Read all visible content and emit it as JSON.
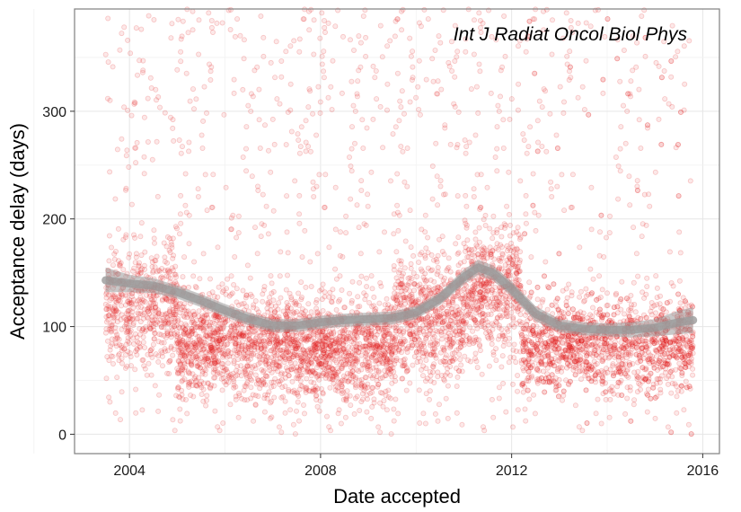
{
  "chart_data": {
    "type": "scatter",
    "title": "",
    "annotation": "Int J Radiat Oncol Biol Phys",
    "xlabel": "Date accepted",
    "ylabel": "Acceptance delay (days)",
    "xlim": [
      2002.85,
      2016.35
    ],
    "ylim": [
      -18,
      395
    ],
    "x_ticks": [
      2004,
      2008,
      2012,
      2016
    ],
    "x_tick_labels": [
      "2004",
      "2008",
      "2012",
      "2016"
    ],
    "y_ticks": [
      0,
      100,
      200,
      300
    ],
    "y_tick_labels": [
      "0",
      "100",
      "200",
      "300"
    ],
    "grid": true,
    "legend": "none",
    "point_color": "#e41a1c",
    "point_alpha": 0.12,
    "smooth_color": "#9a9a9a",
    "smooth": [
      {
        "x": 2003.5,
        "y": 143,
        "lo": 132,
        "hi": 155
      },
      {
        "x": 2004.0,
        "y": 140,
        "lo": 132,
        "hi": 148
      },
      {
        "x": 2004.5,
        "y": 138,
        "lo": 131,
        "hi": 145
      },
      {
        "x": 2005.0,
        "y": 132,
        "lo": 126,
        "hi": 138
      },
      {
        "x": 2005.5,
        "y": 124,
        "lo": 118,
        "hi": 130
      },
      {
        "x": 2006.0,
        "y": 115,
        "lo": 109,
        "hi": 121
      },
      {
        "x": 2006.5,
        "y": 107,
        "lo": 101,
        "hi": 113
      },
      {
        "x": 2007.0,
        "y": 101,
        "lo": 95,
        "hi": 107
      },
      {
        "x": 2007.5,
        "y": 101,
        "lo": 95,
        "hi": 107
      },
      {
        "x": 2008.0,
        "y": 104,
        "lo": 98,
        "hi": 110
      },
      {
        "x": 2008.5,
        "y": 106,
        "lo": 100,
        "hi": 112
      },
      {
        "x": 2009.0,
        "y": 107,
        "lo": 101,
        "hi": 113
      },
      {
        "x": 2009.5,
        "y": 108,
        "lo": 102,
        "hi": 114
      },
      {
        "x": 2010.0,
        "y": 113,
        "lo": 107,
        "hi": 119
      },
      {
        "x": 2010.5,
        "y": 126,
        "lo": 120,
        "hi": 132
      },
      {
        "x": 2011.0,
        "y": 146,
        "lo": 139,
        "hi": 153
      },
      {
        "x": 2011.3,
        "y": 155,
        "lo": 148,
        "hi": 162
      },
      {
        "x": 2011.6,
        "y": 150,
        "lo": 143,
        "hi": 157
      },
      {
        "x": 2012.0,
        "y": 135,
        "lo": 128,
        "hi": 142
      },
      {
        "x": 2012.5,
        "y": 112,
        "lo": 105,
        "hi": 119
      },
      {
        "x": 2013.0,
        "y": 101,
        "lo": 95,
        "hi": 107
      },
      {
        "x": 2013.5,
        "y": 98,
        "lo": 92,
        "hi": 104
      },
      {
        "x": 2014.0,
        "y": 97,
        "lo": 91,
        "hi": 103
      },
      {
        "x": 2014.5,
        "y": 97,
        "lo": 90,
        "hi": 104
      },
      {
        "x": 2015.0,
        "y": 99,
        "lo": 91,
        "hi": 107
      },
      {
        "x": 2015.5,
        "y": 104,
        "lo": 93,
        "hi": 115
      },
      {
        "x": 2015.8,
        "y": 106,
        "lo": 94,
        "hi": 118
      }
    ],
    "density": [
      {
        "from": 2003.5,
        "to": 2005.0,
        "center": 120,
        "spread": 70,
        "weight": 0.85
      },
      {
        "from": 2005.0,
        "to": 2007.5,
        "center": 85,
        "spread": 60,
        "weight": 1.0
      },
      {
        "from": 2007.5,
        "to": 2009.5,
        "center": 80,
        "spread": 60,
        "weight": 1.05
      },
      {
        "from": 2009.5,
        "to": 2011.0,
        "center": 110,
        "spread": 70,
        "weight": 1.0
      },
      {
        "from": 2011.0,
        "to": 2012.2,
        "center": 135,
        "spread": 75,
        "weight": 1.0
      },
      {
        "from": 2012.2,
        "to": 2015.8,
        "center": 85,
        "spread": 55,
        "weight": 0.95
      }
    ]
  }
}
